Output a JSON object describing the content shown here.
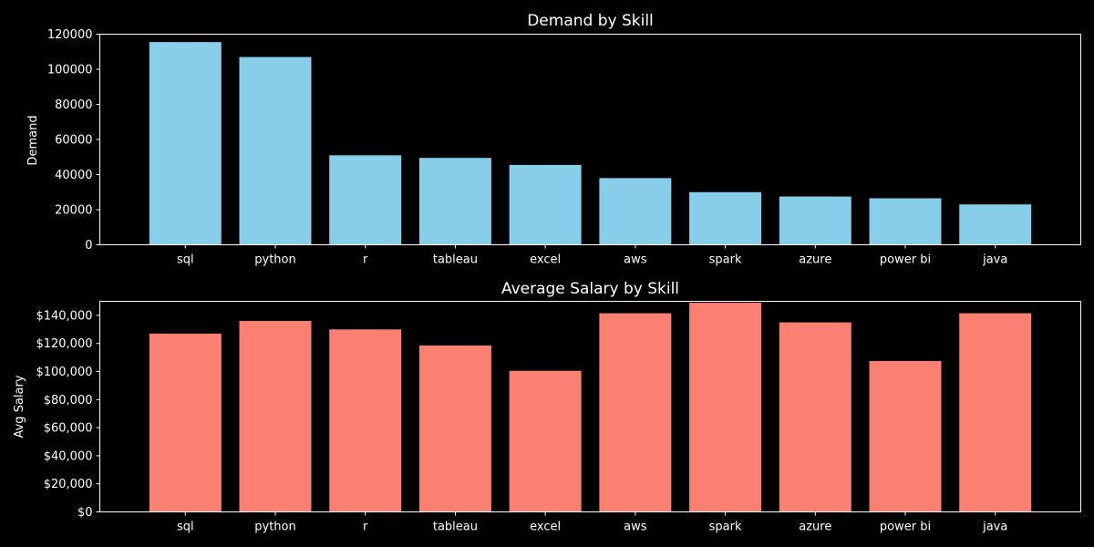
{
  "chart_data": [
    {
      "type": "bar",
      "title": "Demand by Skill",
      "xlabel": "",
      "ylabel": "Demand",
      "ylim": [
        0,
        120000
      ],
      "yticks": [
        0,
        20000,
        40000,
        60000,
        80000,
        100000,
        120000
      ],
      "ytick_labels": [
        "0",
        "20000",
        "40000",
        "60000",
        "80000",
        "100000",
        "120000"
      ],
      "categories": [
        "sql",
        "python",
        "r",
        "tableau",
        "excel",
        "aws",
        "spark",
        "azure",
        "power bi",
        "java"
      ],
      "values": [
        115500,
        107000,
        51000,
        49500,
        45500,
        38000,
        30000,
        27500,
        26500,
        23000
      ],
      "color": "#87ceeb",
      "grid": false
    },
    {
      "type": "bar",
      "title": "Average Salary by Skill",
      "xlabel": "",
      "ylabel": "Avg Salary",
      "ylim": [
        0,
        150000
      ],
      "yticks": [
        0,
        20000,
        40000,
        60000,
        80000,
        100000,
        120000,
        140000
      ],
      "ytick_labels": [
        "$0",
        "$20,000",
        "$40,000",
        "$60,000",
        "$80,000",
        "$100,000",
        "$120,000",
        "$140,000"
      ],
      "categories": [
        "sql",
        "python",
        "r",
        "tableau",
        "excel",
        "aws",
        "spark",
        "azure",
        "power bi",
        "java"
      ],
      "values": [
        127000,
        136000,
        130000,
        118500,
        100500,
        141500,
        149000,
        135000,
        107500,
        141500
      ],
      "color": "#fa8072",
      "grid": false
    }
  ]
}
